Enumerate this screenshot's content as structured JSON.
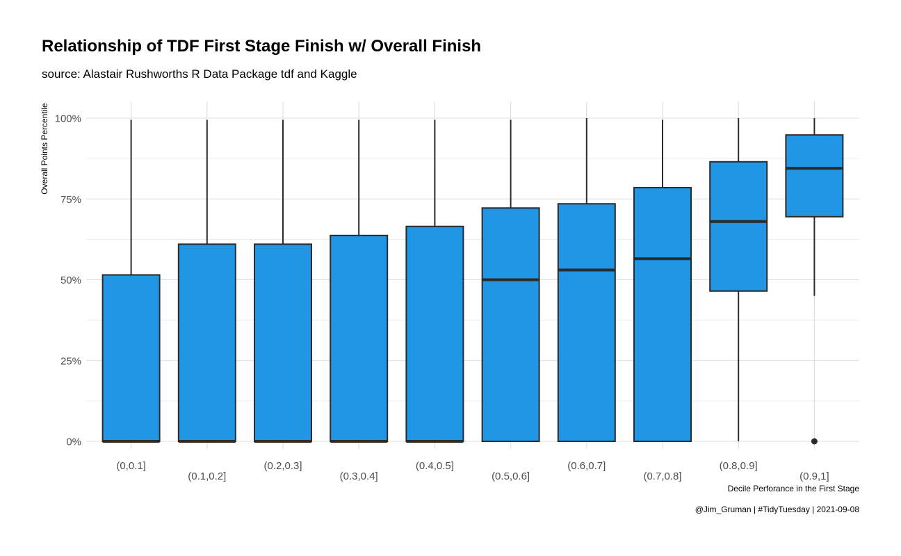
{
  "chart_data": {
    "type": "boxplot",
    "title": "Relationship of TDF First Stage Finish w/ Overall Finish",
    "subtitle": "source: Alastair Rushworths R Data Package tdf and Kaggle",
    "caption": "@Jim_Gruman | #TidyTuesday | 2021-09-08",
    "xlabel": "Decile Perforance in the First Stage",
    "ylabel": "Overall Points Percentile",
    "ylim": [
      0,
      1
    ],
    "yticks": [
      0,
      0.25,
      0.5,
      0.75,
      1.0
    ],
    "ytick_labels": [
      "0%",
      "25%",
      "50%",
      "75%",
      "100%"
    ],
    "grid": true,
    "fill_color": "#2196E5",
    "line_color": "#2b2b2b",
    "categories": [
      "(0,0.1]",
      "(0.1,0.2]",
      "(0.2,0.3]",
      "(0.3,0.4]",
      "(0.4,0.5]",
      "(0.5,0.6]",
      "(0.6,0.7]",
      "(0.7,0.8]",
      "(0.8,0.9]",
      "(0.9,1]"
    ],
    "boxes": [
      {
        "whisker_low": 0,
        "q1": 0,
        "median": 0,
        "q3": 0.515,
        "whisker_high": 0.995,
        "outliers": []
      },
      {
        "whisker_low": 0,
        "q1": 0,
        "median": 0,
        "q3": 0.61,
        "whisker_high": 0.995,
        "outliers": []
      },
      {
        "whisker_low": 0,
        "q1": 0,
        "median": 0,
        "q3": 0.61,
        "whisker_high": 0.995,
        "outliers": []
      },
      {
        "whisker_low": 0,
        "q1": 0,
        "median": 0,
        "q3": 0.637,
        "whisker_high": 0.995,
        "outliers": []
      },
      {
        "whisker_low": 0,
        "q1": 0,
        "median": 0,
        "q3": 0.665,
        "whisker_high": 0.995,
        "outliers": []
      },
      {
        "whisker_low": 0,
        "q1": 0,
        "median": 0.5,
        "q3": 0.722,
        "whisker_high": 0.995,
        "outliers": []
      },
      {
        "whisker_low": 0,
        "q1": 0,
        "median": 0.53,
        "q3": 0.735,
        "whisker_high": 1.0,
        "outliers": []
      },
      {
        "whisker_low": 0,
        "q1": 0,
        "median": 0.565,
        "q3": 0.785,
        "whisker_high": 0.995,
        "outliers": []
      },
      {
        "whisker_low": 0,
        "q1": 0.465,
        "median": 0.68,
        "q3": 0.865,
        "whisker_high": 1.0,
        "outliers": []
      },
      {
        "whisker_low": 0.45,
        "q1": 0.695,
        "median": 0.845,
        "q3": 0.948,
        "whisker_high": 1.0,
        "outliers": [
          0
        ]
      }
    ]
  }
}
